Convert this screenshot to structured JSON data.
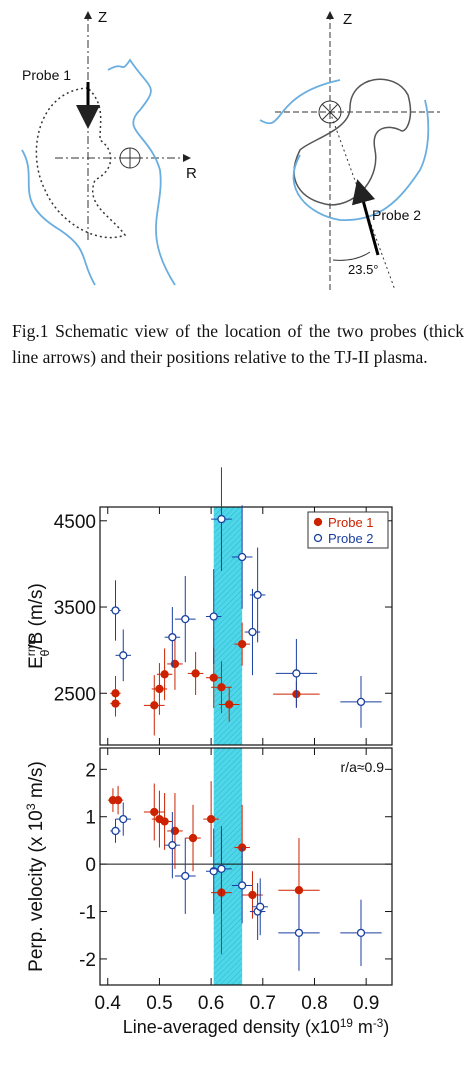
{
  "figure": {
    "labels": {
      "z_left": "Z",
      "probe1": "Probe 1",
      "r_left": "R",
      "z_right": "Z",
      "probe2": "Probe 2",
      "angle": "23.5°"
    },
    "caption": "Fig.1 Schematic view of the location of the two probes (thick line arrows) and their positions relative to the TJ-II plasma."
  },
  "chart_data": [
    {
      "type": "scatter",
      "ylabel": {
        "parts": [
          "E",
          "rms",
          "θ",
          "/B (m/s)"
        ],
        "sup": [
          1
        ],
        "sub": [
          2
        ]
      },
      "xlim": [
        0.385,
        0.95
      ],
      "ylim": [
        1900,
        4660
      ],
      "yticks": [
        2500,
        3500,
        4500
      ],
      "band": [
        0.605,
        0.66
      ],
      "band_color": "#4fd6e8",
      "legend": "upper right",
      "series": [
        {
          "name": "Probe 1",
          "color": "#cc2200",
          "filled": true,
          "x": [
            0.415,
            0.415,
            0.49,
            0.5,
            0.51,
            0.53,
            0.57,
            0.605,
            0.62,
            0.635,
            0.66,
            0.765
          ],
          "values": [
            2500,
            2380,
            2360,
            2550,
            2720,
            2840,
            2730,
            2680,
            2570,
            2370,
            3070,
            2490
          ],
          "xerr": [
            0.01,
            0.01,
            0.02,
            0.015,
            0.015,
            0.015,
            0.015,
            0.015,
            0.02,
            0.02,
            0.015,
            0.045
          ],
          "yerr": [
            200,
            150,
            350,
            300,
            300,
            300,
            250,
            350,
            300,
            200,
            250,
            150
          ]
        },
        {
          "name": "Probe 2",
          "color": "#1a3fa0",
          "filled": false,
          "x": [
            0.415,
            0.43,
            0.525,
            0.55,
            0.605,
            0.62,
            0.66,
            0.68,
            0.69,
            0.765,
            0.89
          ],
          "values": [
            3460,
            2940,
            3150,
            3360,
            3390,
            4520,
            4080,
            3210,
            3640,
            2730,
            2400
          ],
          "xerr": [
            0.01,
            0.015,
            0.015,
            0.02,
            0.015,
            0.02,
            0.02,
            0.015,
            0.015,
            0.04,
            0.04
          ],
          "yerr": [
            350,
            300,
            350,
            500,
            550,
            600,
            600,
            500,
            550,
            400,
            300
          ]
        }
      ]
    },
    {
      "type": "scatter",
      "ylabel": {
        "parts": [
          "Perp. velocity (x 10",
          "3",
          " m/s)"
        ],
        "sup": [
          1
        ]
      },
      "xlabel": {
        "parts": [
          "Line-averaged density (x10",
          "19",
          " m",
          "-3",
          ")"
        ],
        "sup": [
          1,
          3
        ]
      },
      "annotation": "r/a≈0.9",
      "hline": 0,
      "xlim": [
        0.385,
        0.95
      ],
      "xticks": [
        0.4,
        0.5,
        0.6,
        0.7,
        0.8,
        0.9
      ],
      "ylim": [
        -2.55,
        2.45
      ],
      "yticks": [
        2,
        1,
        0,
        -1,
        -2
      ],
      "band": [
        0.605,
        0.66
      ],
      "band_color": "#4fd6e8",
      "series": [
        {
          "name": "Probe 1",
          "color": "#cc2200",
          "filled": true,
          "x": [
            0.41,
            0.42,
            0.49,
            0.5,
            0.51,
            0.53,
            0.565,
            0.6,
            0.62,
            0.66,
            0.68,
            0.77
          ],
          "values": [
            1.35,
            1.35,
            1.1,
            0.95,
            0.9,
            0.7,
            0.55,
            0.95,
            -0.6,
            0.35,
            -0.65,
            -0.55
          ],
          "xerr": [
            0.01,
            0.01,
            0.02,
            0.015,
            0.015,
            0.015,
            0.015,
            0.015,
            0.02,
            0.015,
            0.02,
            0.04
          ],
          "yerr": [
            0.25,
            0.3,
            0.6,
            0.6,
            0.6,
            0.8,
            0.7,
            0.8,
            1.3,
            0.9,
            0.5,
            1.1
          ]
        },
        {
          "name": "Probe 2",
          "color": "#1a3fa0",
          "filled": false,
          "x": [
            0.415,
            0.43,
            0.525,
            0.55,
            0.605,
            0.62,
            0.66,
            0.69,
            0.695,
            0.77,
            0.89
          ],
          "values": [
            0.7,
            0.95,
            0.4,
            -0.25,
            -0.15,
            -0.1,
            -0.45,
            -1.0,
            -0.9,
            -1.45,
            -1.45
          ],
          "xerr": [
            0.01,
            0.015,
            0.015,
            0.02,
            0.015,
            0.02,
            0.02,
            0.015,
            0.015,
            0.04,
            0.04
          ],
          "yerr": [
            0.25,
            0.35,
            0.7,
            0.8,
            0.9,
            0.9,
            0.8,
            0.6,
            0.6,
            0.8,
            0.7
          ]
        }
      ]
    }
  ]
}
